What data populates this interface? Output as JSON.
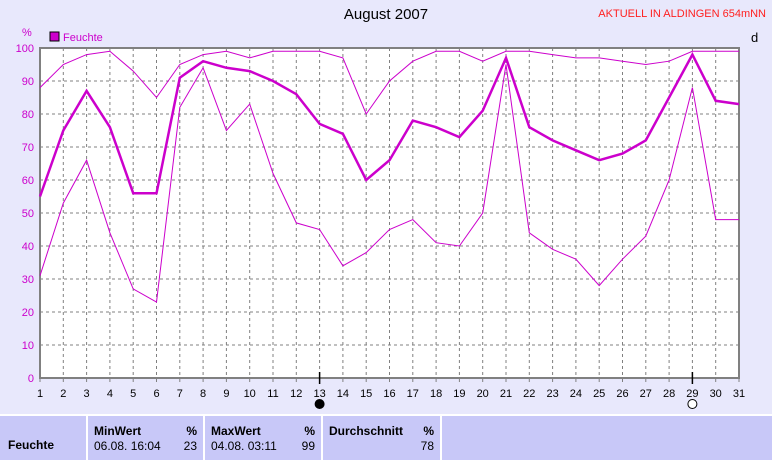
{
  "title": "August 2007",
  "subtitle": "AKTUELL IN ALDINGEN 654mNN",
  "right_cut_label": "d",
  "chart_data": {
    "type": "line",
    "title": "August 2007",
    "ylabel": "%",
    "ylim": [
      0,
      100
    ],
    "yticks": [
      0,
      10,
      20,
      30,
      40,
      50,
      60,
      70,
      80,
      90,
      100
    ],
    "x": [
      1,
      2,
      3,
      4,
      5,
      6,
      7,
      8,
      9,
      10,
      11,
      12,
      13,
      14,
      15,
      16,
      17,
      18,
      19,
      20,
      21,
      22,
      23,
      24,
      25,
      26,
      27,
      28,
      29,
      30,
      31
    ],
    "grid": true,
    "legend": "top-left",
    "legend_label": "Feuchte",
    "color": "#cc00cc",
    "series": [
      {
        "name": "Feuchte",
        "values": [
          55,
          75,
          87,
          76,
          56,
          56,
          91,
          96,
          94,
          93,
          90,
          86,
          77,
          74,
          60,
          66,
          78,
          76,
          73,
          81,
          97,
          76,
          72,
          69,
          66,
          68,
          72,
          85,
          98,
          84,
          83
        ]
      },
      {
        "values": [
          88,
          95,
          98,
          99,
          93,
          85,
          95,
          98,
          99,
          97,
          99,
          99,
          99,
          97,
          80,
          90,
          96,
          99,
          99,
          96,
          99,
          99,
          98,
          97,
          97,
          96,
          95,
          96,
          99,
          99,
          99
        ]
      },
      {
        "values": [
          31,
          53,
          66,
          44,
          27,
          23,
          82,
          94,
          75,
          83,
          62,
          47,
          45,
          34,
          38,
          45,
          48,
          41,
          40,
          50,
          95,
          44,
          39,
          36,
          28,
          36,
          43,
          60,
          88,
          48,
          48
        ]
      }
    ],
    "moon_phases": [
      {
        "day": 13,
        "phase": "new-moon"
      },
      {
        "day": 29,
        "phase": "full-moon"
      }
    ]
  },
  "table": {
    "row_label": "Feuchte",
    "min": {
      "header": "MinWert",
      "unit": "%",
      "time": "06.08.  16:04",
      "value": "23"
    },
    "max": {
      "header": "MaxWert",
      "unit": "%",
      "time": "04.08.  03:11",
      "value": "99"
    },
    "avg": {
      "header": "Durchschnitt",
      "unit": "%",
      "value": "78"
    }
  }
}
